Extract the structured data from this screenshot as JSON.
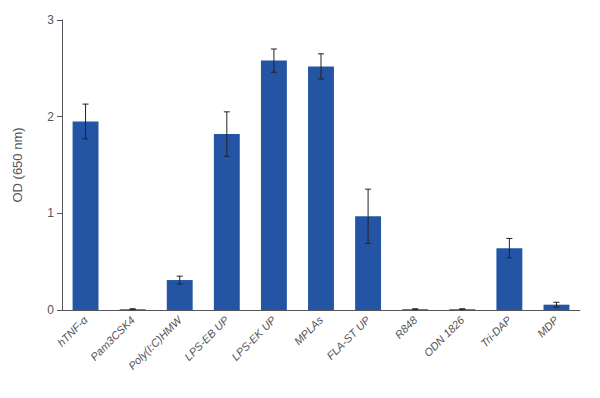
{
  "chart_data": {
    "type": "bar",
    "categories": [
      "hTNF-α",
      "Pam3CSK4",
      "Poly(I:C)HMW",
      "LPS-EB UP",
      "LPS-EK UP",
      "MPLAs",
      "FLA-ST UP",
      "R848",
      "ODN 1826",
      "Tri-DAP",
      "MDP"
    ],
    "values": [
      1.95,
      0.008,
      0.31,
      1.82,
      2.58,
      2.52,
      0.97,
      0.008,
      0.008,
      0.64,
      0.055
    ],
    "errors": [
      0.18,
      0.005,
      0.04,
      0.23,
      0.12,
      0.13,
      0.28,
      0.005,
      0.005,
      0.1,
      0.025
    ],
    "color": "#2455a4",
    "ylabel": "OD (650 nm)",
    "ylim": [
      0,
      3
    ],
    "yticks": [
      0,
      1,
      2,
      3
    ],
    "grid": false
  }
}
